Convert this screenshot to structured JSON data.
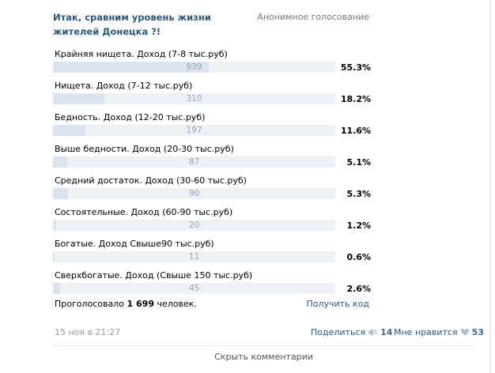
{
  "poll": {
    "title": "Итак, сравним уровень жизни жителей Донецка ?!",
    "type": "Анонимное голосование",
    "options": [
      {
        "label": "Крайняя нищета. Доход (7-8 тыс.руб)",
        "count": "939",
        "percent": "55.3%",
        "fill": 0.553
      },
      {
        "label": "Нищета. Доход (7-12 тыс.руб)",
        "count": "310",
        "percent": "18.2%",
        "fill": 0.182
      },
      {
        "label": "Бедность. Доход (12-20 тыс.руб)",
        "count": "197",
        "percent": "11.6%",
        "fill": 0.116
      },
      {
        "label": "Выше бедности. Доход (20-30 тыс.руб)",
        "count": "87",
        "percent": "5.1%",
        "fill": 0.051
      },
      {
        "label": "Средний достаток. Доход (30-60 тыс.руб)",
        "count": "90",
        "percent": "5.3%",
        "fill": 0.053
      },
      {
        "label": "Состоятельные. Доход (60-90 тыс.руб)",
        "count": "20",
        "percent": "1.2%",
        "fill": 0.012
      },
      {
        "label": "Богатые. Доход Свыше90 тыс.руб)",
        "count": "11",
        "percent": "0.6%",
        "fill": 0.006
      },
      {
        "label": "Сверхбогатые. Доход (Свыше 150 тыс.руб)",
        "count": "45",
        "percent": "2.6%",
        "fill": 0.026
      }
    ],
    "voted_prefix": "Проголосовало",
    "voted_count": "1 699",
    "voted_suffix": "человек.",
    "get_code": "Получить код"
  },
  "meta": {
    "date": "15 ноя в 21:27",
    "share_label": "Поделиться",
    "share_count": "14",
    "like_label": "Мне нравится",
    "like_count": "53"
  },
  "comments": {
    "hide_label": "Скрыть комментарии"
  },
  "colors": {
    "link": "#2b587a",
    "bar_fill": "#dbe4ee",
    "bar_track": "#edf1f5"
  },
  "icons": [
    "megaphone-icon",
    "heart-icon"
  ]
}
